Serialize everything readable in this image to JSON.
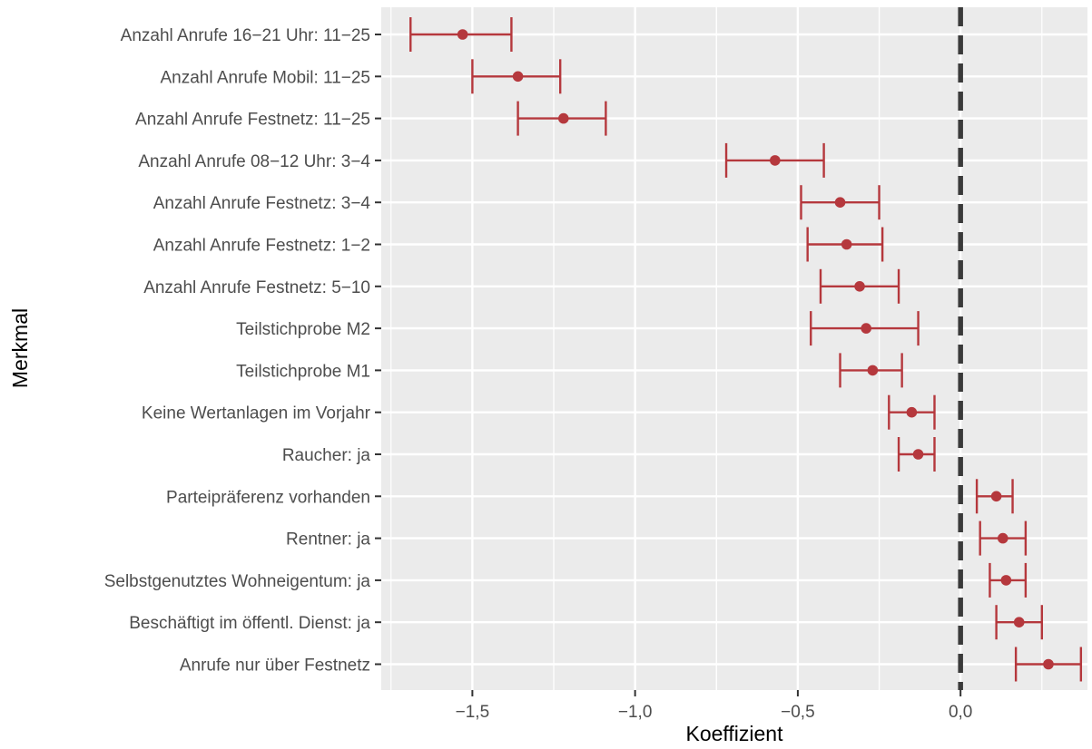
{
  "chart_data": {
    "type": "errorbar",
    "title": "",
    "xlabel": "Koeffizient",
    "ylabel": "Merkmal",
    "xlim": [
      -1.78,
      0.39
    ],
    "x_ticks": [
      -1.5,
      -1.0,
      -0.5,
      0.0
    ],
    "x_tick_labels": [
      "−1,5",
      "−1,0",
      "−0,5",
      "0,0"
    ],
    "reference_line": {
      "x": 0.0,
      "style": "dashed"
    },
    "grid": true,
    "point_color": "#b5383d",
    "reference_line_color": "#3a3a3a",
    "panel_color": "#ebebeb",
    "categories": [
      "Anzahl Anrufe 16−21 Uhr: 11−25",
      "Anzahl Anrufe Mobil: 11−25",
      "Anzahl Anrufe Festnetz: 11−25",
      "Anzahl Anrufe 08−12 Uhr: 3−4",
      "Anzahl Anrufe Festnetz: 3−4",
      "Anzahl Anrufe Festnetz: 1−2",
      "Anzahl Anrufe Festnetz: 5−10",
      "Teilstichprobe M2",
      "Teilstichprobe M1",
      "Keine Wertanlagen im Vorjahr",
      "Raucher: ja",
      "Parteipräferenz vorhanden",
      "Rentner: ja",
      "Selbstgenutztes Wohneigentum: ja",
      "Beschäftigt im öffentl. Dienst: ja",
      "Anrufe nur über Festnetz"
    ],
    "estimates": [
      -1.53,
      -1.36,
      -1.22,
      -0.57,
      -0.37,
      -0.35,
      -0.31,
      -0.29,
      -0.27,
      -0.15,
      -0.13,
      0.11,
      0.13,
      0.14,
      0.18,
      0.27
    ],
    "lower": [
      -1.69,
      -1.5,
      -1.36,
      -0.72,
      -0.49,
      -0.47,
      -0.43,
      -0.46,
      -0.37,
      -0.22,
      -0.19,
      0.05,
      0.06,
      0.09,
      0.11,
      0.17
    ],
    "upper": [
      -1.38,
      -1.23,
      -1.09,
      -0.42,
      -0.25,
      -0.24,
      -0.19,
      -0.13,
      -0.18,
      -0.08,
      -0.08,
      0.16,
      0.2,
      0.2,
      0.25,
      0.37
    ]
  }
}
